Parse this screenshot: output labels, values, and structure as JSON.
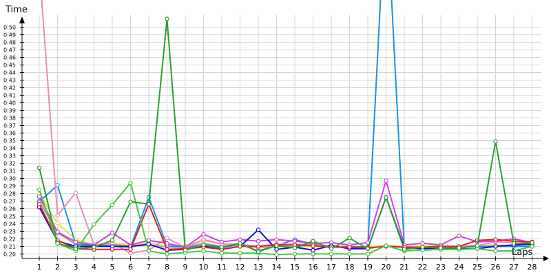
{
  "chart_data": {
    "type": "line",
    "title": "",
    "xlabel": "Laps",
    "ylabel": "Time",
    "grid": true,
    "legend": "none",
    "x": [
      1,
      2,
      3,
      4,
      5,
      6,
      7,
      8,
      9,
      10,
      11,
      12,
      13,
      14,
      15,
      16,
      17,
      18,
      19,
      20,
      21,
      22,
      23,
      24,
      25,
      26,
      27,
      28
    ],
    "x_tick_labels": [
      "1",
      "2",
      "3",
      "4",
      "5",
      "6",
      "7",
      "8",
      "9",
      "10",
      "11",
      "12",
      "13",
      "14",
      "15",
      "16",
      "17",
      "18",
      "19",
      "20",
      "21",
      "22",
      "23",
      "24",
      "25",
      "26",
      "27",
      "28"
    ],
    "y_unit": "seconds",
    "ylim": [
      19.4,
      51.6
    ],
    "y_ticks": [
      20,
      21,
      22,
      23,
      24,
      25,
      26,
      27,
      28,
      29,
      30,
      31,
      32,
      33,
      34,
      35,
      36,
      37,
      38,
      39,
      40,
      41,
      42,
      43,
      44,
      45,
      46,
      47,
      48,
      49,
      50
    ],
    "y_tick_labels": [
      "0:20",
      "0:21",
      "0:22",
      "0:23",
      "0:24",
      "0:25",
      "0:26",
      "0:27",
      "0:28",
      "0:29",
      "0:30",
      "0:31",
      "0:32",
      "0:33",
      "0:34",
      "0:35",
      "0:36",
      "0:37",
      "0:38",
      "0:39",
      "0:40",
      "0:41",
      "0:42",
      "0:43",
      "0:44",
      "0:45",
      "0:46",
      "0:47",
      "0:48",
      "0:49",
      "0:50"
    ],
    "series": [
      {
        "color": "#2e9e2e",
        "values": [
          31.4,
          21.4,
          20.7,
          20.9,
          21.8,
          26.9,
          26.6,
          51.1,
          20.5,
          21.2,
          20.9,
          21.4,
          20.3,
          21.1,
          20.8,
          21.7,
          20.7,
          22.1,
          20.7,
          27.5,
          20.6,
          20.9,
          20.8,
          20.8,
          21.1,
          34.9,
          21.4,
          21.5
        ]
      },
      {
        "color": "#46c846",
        "values": [
          28.5,
          21.4,
          20.4,
          23.9,
          26.5,
          29.4,
          20.4,
          20.0,
          20.2,
          20.4,
          20.1,
          20.1,
          20.1,
          19.9,
          20.0,
          20.0,
          20.0,
          20.0,
          20.0,
          21.1,
          20.4,
          20.5,
          20.6,
          20.6,
          20.7,
          20.4,
          20.4,
          21.0
        ]
      },
      {
        "color": "#e02020",
        "values": [
          26.6,
          21.8,
          20.7,
          20.6,
          20.6,
          20.6,
          26.6,
          20.6,
          20.7,
          20.9,
          20.6,
          21.0,
          21.0,
          21.2,
          21.2,
          21.1,
          20.9,
          20.9,
          20.8,
          21.0,
          20.9,
          20.9,
          21.0,
          21.0,
          21.8,
          21.9,
          21.7,
          21.6
        ]
      },
      {
        "color": "#1010d0",
        "values": [
          26.2,
          21.7,
          21.0,
          21.0,
          21.0,
          21.0,
          21.3,
          20.5,
          20.6,
          21.0,
          20.6,
          21.0,
          23.2,
          20.6,
          20.9,
          20.5,
          21.1,
          20.7,
          20.7,
          27.5,
          20.8,
          20.7,
          20.8,
          20.7,
          20.7,
          21.0,
          21.2,
          21.3
        ]
      },
      {
        "color": "#d040e0",
        "values": [
          27.6,
          22.9,
          21.6,
          21.2,
          22.8,
          21.2,
          21.8,
          21.4,
          20.9,
          22.6,
          21.6,
          21.9,
          21.7,
          21.9,
          21.7,
          21.4,
          21.5,
          21.2,
          21.5,
          29.7,
          21.2,
          21.4,
          21.2,
          22.4,
          21.6,
          21.7,
          22.0,
          21.5
        ]
      },
      {
        "color": "#f088b8",
        "values": [
          58.0,
          25.1,
          28.1,
          21.2,
          21.4,
          20.1,
          20.5,
          22.1,
          20.8,
          21.9,
          21.3,
          21.3,
          21.0,
          21.3,
          21.3,
          21.2,
          21.1,
          20.9,
          20.7,
          21.1,
          20.9,
          20.9,
          21.0,
          21.0,
          21.1,
          21.6,
          21.5,
          21.2
        ]
      },
      {
        "color": "#1a90e6",
        "values": [
          26.9,
          29.1,
          21.3,
          21.2,
          21.0,
          20.9,
          27.5,
          21.1,
          20.9,
          21.1,
          20.8,
          21.3,
          20.4,
          21.1,
          21.9,
          21.3,
          21.0,
          21.0,
          20.9,
          68.0,
          20.9,
          20.8,
          21.0,
          20.9,
          21.0,
          21.0,
          21.0,
          21.0
        ]
      },
      {
        "color": "#e8e040",
        "values": [
          27.9,
          24.1,
          21.9,
          21.2,
          21.5,
          21.2,
          21.5,
          21.0,
          21.1,
          21.8,
          21.3,
          21.1,
          20.9,
          21.2,
          21.1,
          21.0,
          21.0,
          20.9,
          21.0,
          21.1,
          21.0,
          21.0,
          21.1,
          21.0,
          21.1,
          21.2,
          21.1,
          21.0
        ]
      },
      {
        "color": "#a0a0a0",
        "values": [
          27.0,
          22.8,
          21.3,
          21.0,
          21.3,
          21.0,
          21.2,
          20.9,
          20.9,
          21.4,
          21.0,
          21.2,
          20.8,
          21.0,
          21.0,
          21.0,
          21.0,
          20.9,
          20.9,
          21.0,
          20.9,
          20.9,
          21.0,
          20.9,
          21.0,
          21.0,
          21.0,
          21.0
        ]
      }
    ]
  }
}
